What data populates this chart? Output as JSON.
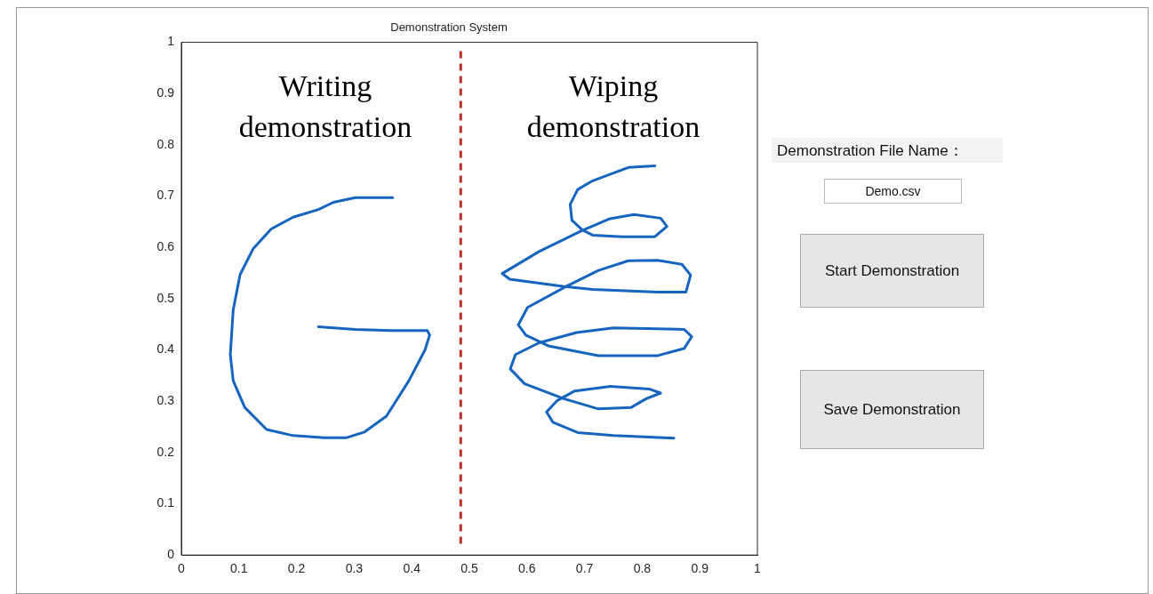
{
  "chart_data": [
    {
      "type": "line",
      "title": "Demonstration System",
      "xlim": [
        0,
        1
      ],
      "ylim": [
        0,
        1
      ],
      "xticks": [
        0,
        0.1,
        0.2,
        0.3,
        0.4,
        0.5,
        0.6,
        0.7,
        0.8,
        0.9,
        1
      ],
      "yticks": [
        0,
        0.1,
        0.2,
        0.3,
        0.4,
        0.5,
        0.6,
        0.7,
        0.8,
        0.9,
        1
      ],
      "marker": "none",
      "line_style": "solid",
      "annotations": [
        "Writing demonstration",
        "Wiping demonstration"
      ],
      "ref_lines": [
        {
          "axis": "x",
          "value": 0.485,
          "color": "#b8332e",
          "line_style": "dashed"
        }
      ],
      "series": [
        {
          "color": "#1565c0",
          "x": [
            0.367,
            0.302,
            0.264,
            0.238,
            0.194,
            0.156,
            0.125,
            0.102,
            0.09,
            0.085,
            0.09,
            0.11,
            0.148,
            0.194,
            0.248,
            0.287,
            0.318,
            0.356,
            0.395,
            0.423,
            0.431,
            0.427,
            0.364,
            0.302,
            0.238
          ],
          "values": [
            0.697,
            0.697,
            0.688,
            0.674,
            0.659,
            0.636,
            0.598,
            0.547,
            0.478,
            0.391,
            0.34,
            0.288,
            0.245,
            0.233,
            0.229,
            0.229,
            0.24,
            0.271,
            0.34,
            0.4,
            0.429,
            0.438,
            0.438,
            0.44,
            0.445
          ]
        },
        {
          "color": "#1565c0",
          "x": [
            0.822,
            0.776,
            0.75,
            0.714,
            0.688,
            0.675,
            0.678,
            0.696,
            0.714,
            0.765,
            0.822,
            0.843,
            0.832,
            0.786,
            0.744,
            0.696,
            0.621,
            0.557,
            0.57,
            0.662,
            0.714,
            0.827,
            0.876,
            0.884,
            0.869,
            0.827,
            0.776,
            0.724,
            0.668,
            0.601,
            0.585,
            0.598,
            0.637,
            0.724,
            0.827,
            0.873,
            0.886,
            0.873,
            0.75,
            0.686,
            0.621,
            0.58,
            0.571,
            0.596,
            0.664,
            0.724,
            0.781,
            0.807,
            0.832,
            0.812,
            0.745,
            0.683,
            0.652,
            0.634,
            0.645,
            0.688,
            0.75,
            0.855
          ],
          "values": [
            0.759,
            0.756,
            0.745,
            0.73,
            0.713,
            0.684,
            0.653,
            0.634,
            0.624,
            0.621,
            0.621,
            0.641,
            0.657,
            0.664,
            0.656,
            0.633,
            0.592,
            0.549,
            0.538,
            0.524,
            0.518,
            0.513,
            0.513,
            0.546,
            0.567,
            0.575,
            0.574,
            0.555,
            0.524,
            0.483,
            0.449,
            0.429,
            0.408,
            0.389,
            0.389,
            0.403,
            0.426,
            0.44,
            0.443,
            0.434,
            0.414,
            0.391,
            0.363,
            0.334,
            0.305,
            0.285,
            0.288,
            0.305,
            0.316,
            0.324,
            0.329,
            0.32,
            0.301,
            0.279,
            0.259,
            0.239,
            0.233,
            0.228
          ]
        }
      ]
    },
    {
      "type": "other",
      "annotations": [
        "Demonstration File Name：",
        "Demo.csv",
        "Start Demonstration",
        "Save Demonstration"
      ]
    }
  ]
}
